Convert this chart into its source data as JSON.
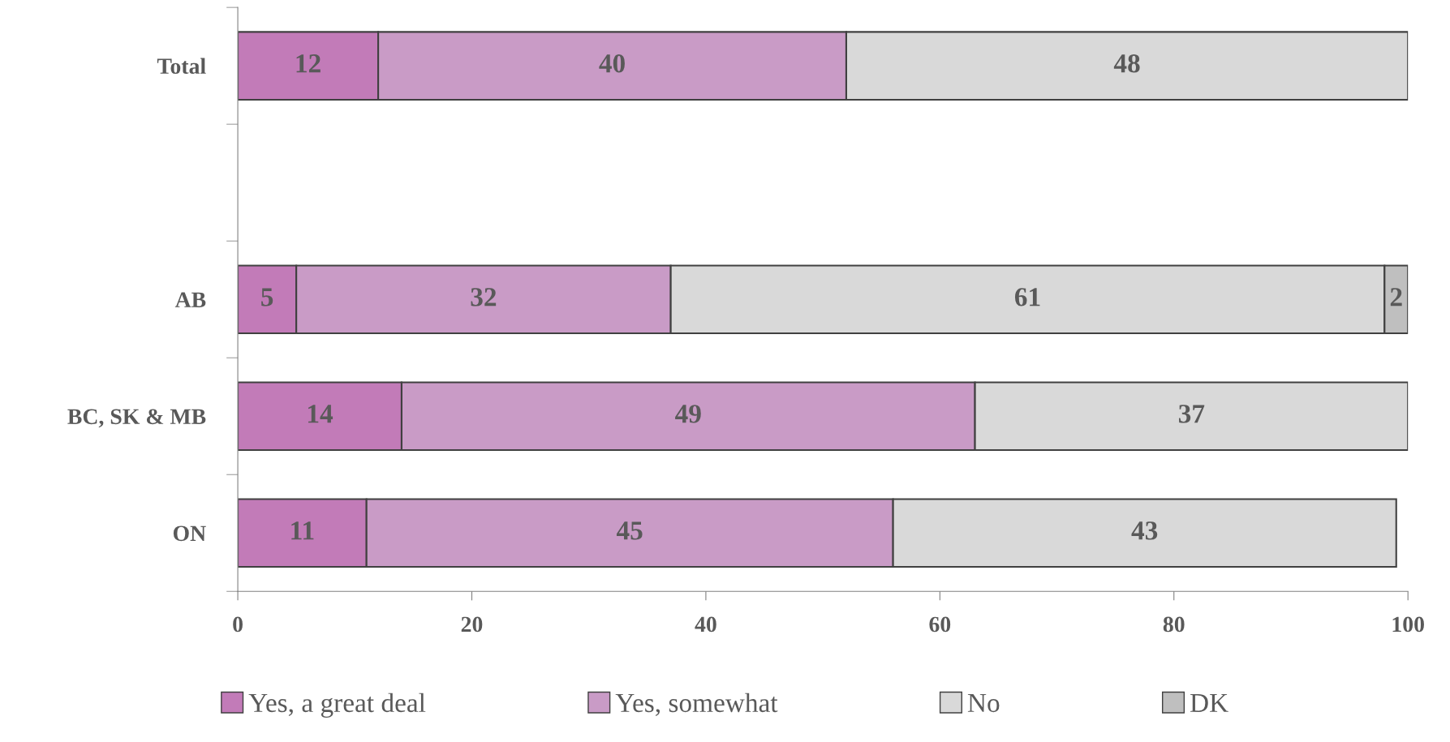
{
  "chart_data": {
    "type": "bar",
    "orientation": "horizontal",
    "stacked": true,
    "data_labels": true,
    "categories": [
      "Total",
      null,
      "AB",
      "BC, SK & MB",
      "ON"
    ],
    "series": [
      {
        "name": "Yes, a great deal",
        "color": "#c27bb8",
        "values": [
          12,
          null,
          5,
          14,
          11
        ]
      },
      {
        "name": "Yes, somewhat",
        "color": "#c99bc6",
        "values": [
          40,
          null,
          32,
          49,
          45
        ]
      },
      {
        "name": "No",
        "color": "#d9d9d9",
        "values": [
          48,
          null,
          61,
          37,
          43
        ]
      },
      {
        "name": "DK",
        "color": "#bfbfbf",
        "values": [
          null,
          null,
          2,
          null,
          null
        ]
      }
    ],
    "xlim": [
      0,
      100
    ],
    "xticks": [
      0,
      20,
      40,
      60,
      80,
      100
    ],
    "grid": false,
    "legend": "bottom"
  }
}
